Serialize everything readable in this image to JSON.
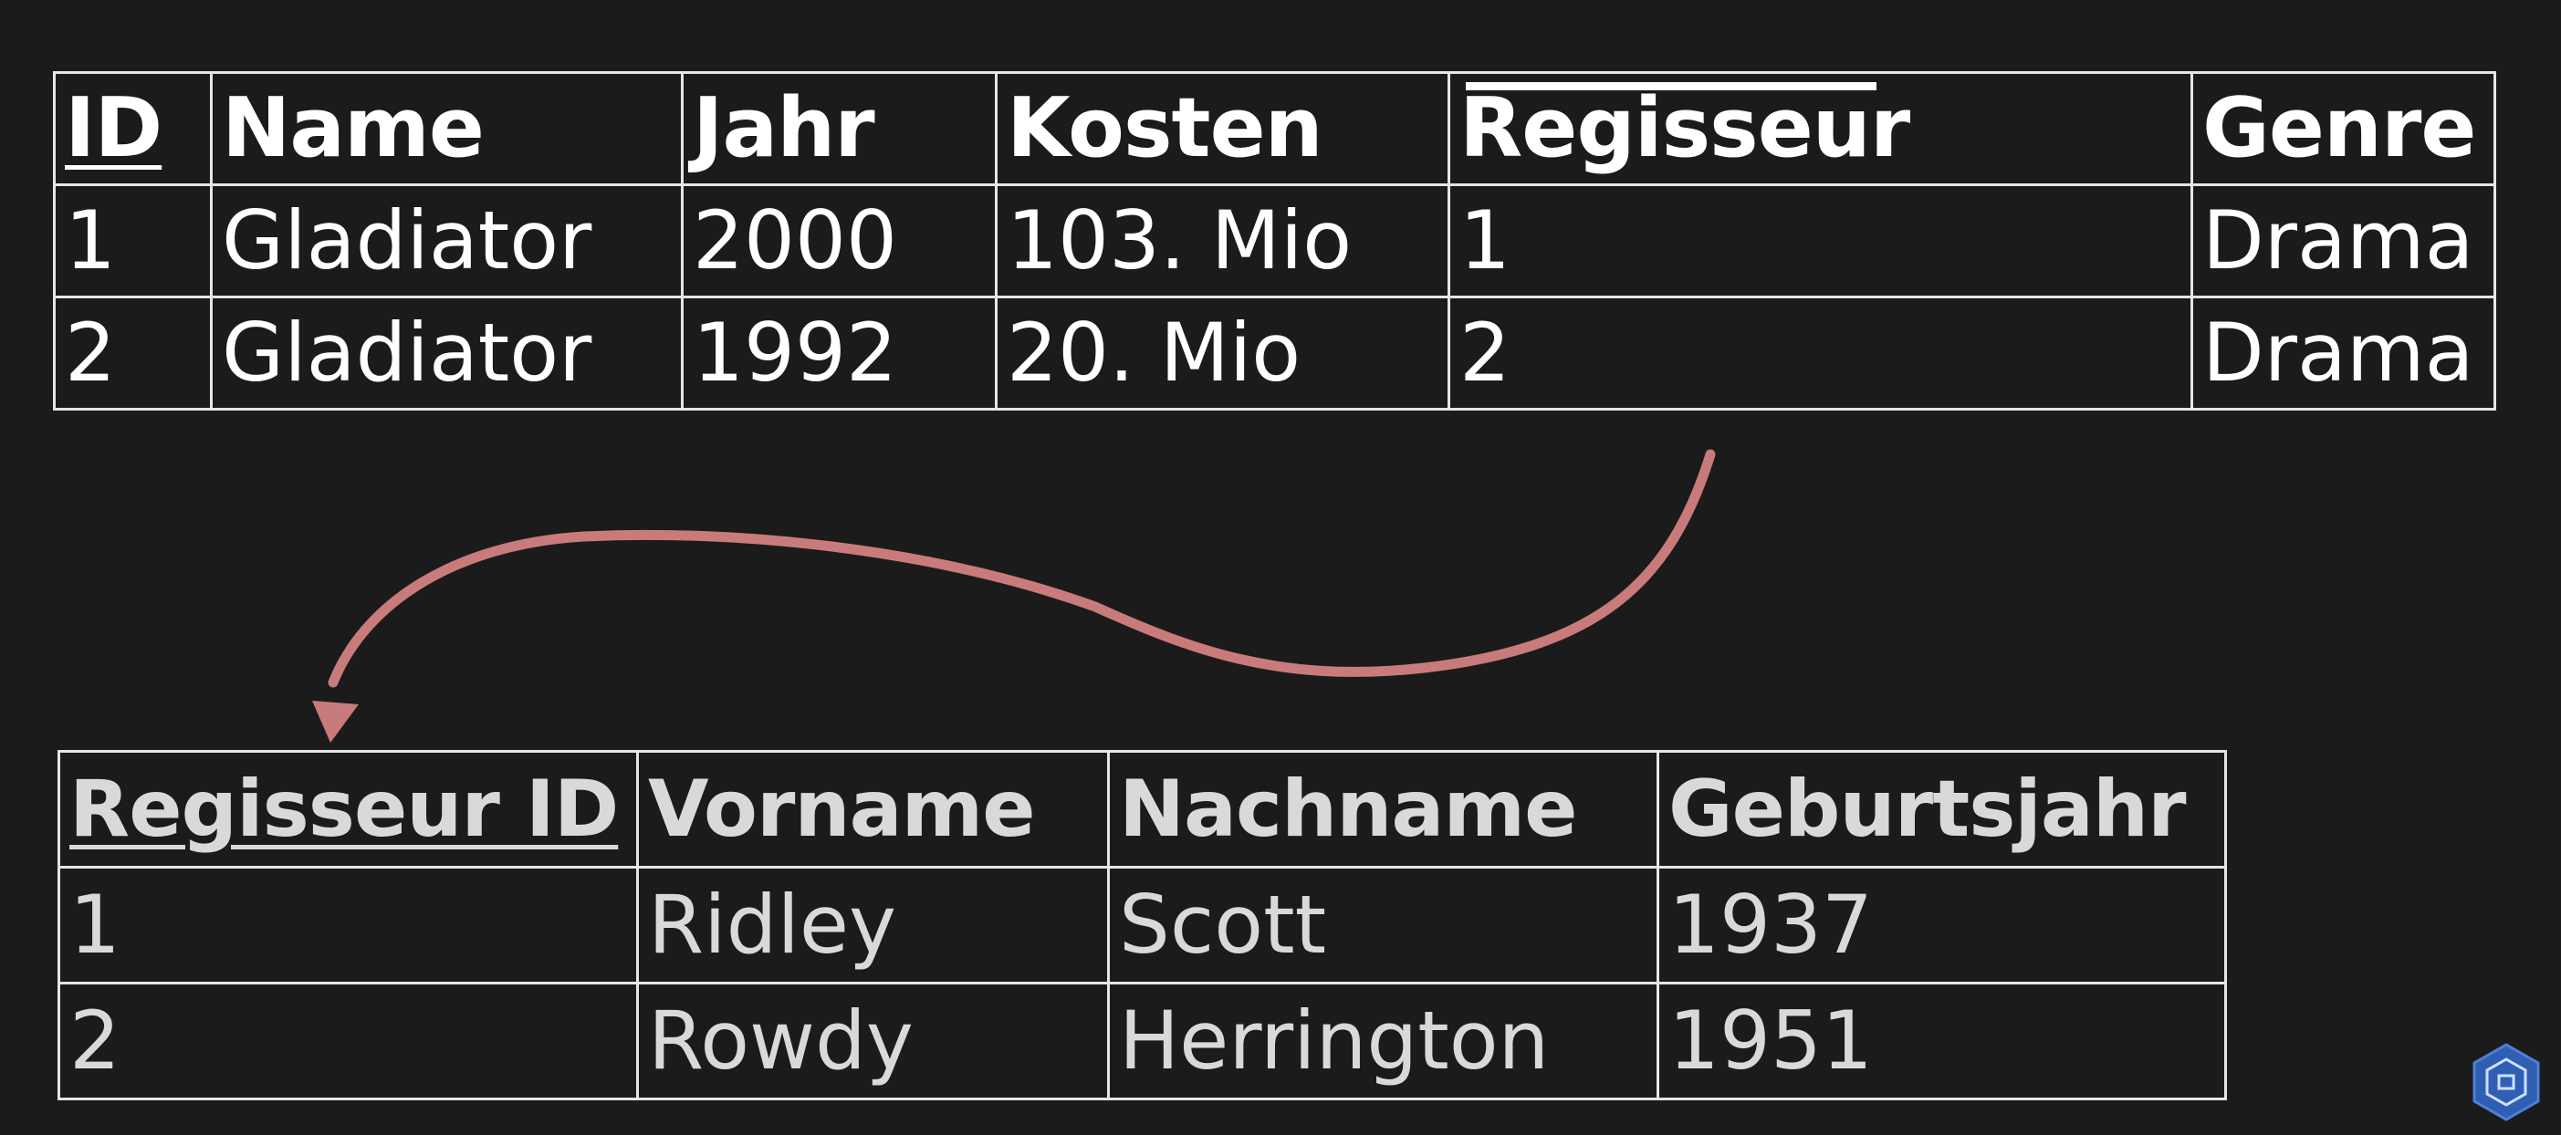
{
  "films_table": {
    "headers": {
      "id": "ID",
      "name": "Name",
      "jahr": "Jahr",
      "kosten": "Kosten",
      "regisseur": "Regisseur",
      "genre": "Genre"
    },
    "rows": [
      {
        "id": "1",
        "name": "Gladiator",
        "jahr": "2000",
        "kosten": "103. Mio",
        "regisseur": "1",
        "genre": "Drama"
      },
      {
        "id": "2",
        "name": "Gladiator",
        "jahr": "1992",
        "kosten": "20. Mio",
        "regisseur": "2",
        "genre": "Drama"
      }
    ]
  },
  "director_table": {
    "headers": {
      "regisseur_id": "Regisseur ID",
      "vorname": "Vorname",
      "nachname": "Nachname",
      "geburtsjahr": "Geburtsjahr"
    },
    "rows": [
      {
        "regisseur_id": "1",
        "vorname": "Ridley",
        "nachname": "Scott",
        "geburtsjahr": "1937"
      },
      {
        "regisseur_id": "2",
        "vorname": "Rowdy",
        "nachname": "Herrington",
        "geburtsjahr": "1951"
      }
    ]
  },
  "colors": {
    "background": "#1b1b1b",
    "arrow": "#c97b7b",
    "border": "#e6e6e6"
  },
  "icons": {
    "arrow": "curved-arrow",
    "badge": "hexagon-logo-icon"
  }
}
